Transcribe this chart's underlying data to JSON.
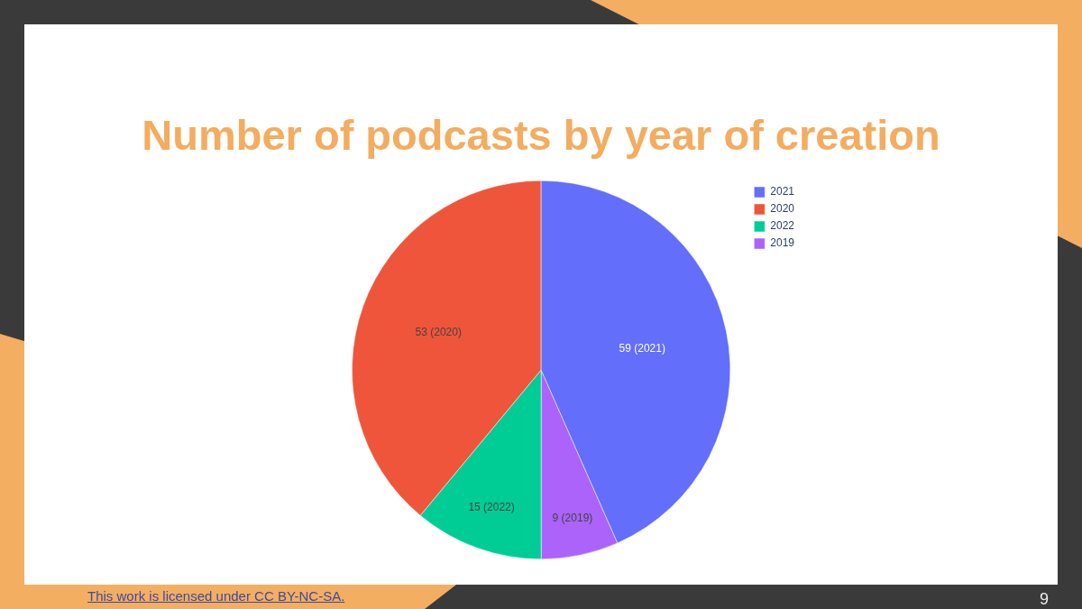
{
  "chart_data": {
    "type": "pie",
    "title": "Number of podcasts by year of creation",
    "categories": [
      "2021",
      "2020",
      "2022",
      "2019"
    ],
    "values": [
      59,
      53,
      15,
      9
    ],
    "colors": [
      "#636efa",
      "#ef553b",
      "#00cc96",
      "#ab63fa"
    ],
    "value_labels": [
      "59 (2021)",
      "53 (2020)",
      "15 (2022)",
      "9 (2019)"
    ],
    "legend": "top right",
    "annotations": [
      "This work is licensed under CC BY-NC-SA.",
      "9"
    ]
  }
}
